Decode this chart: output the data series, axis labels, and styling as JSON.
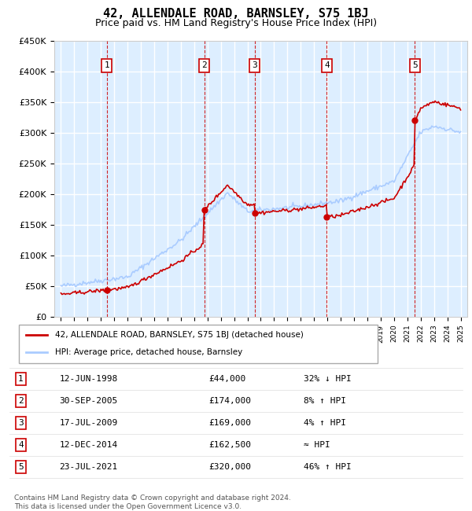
{
  "title": "42, ALLENDALE ROAD, BARNSLEY, S75 1BJ",
  "subtitle": "Price paid vs. HM Land Registry's House Price Index (HPI)",
  "ylim": [
    0,
    450000
  ],
  "yticks": [
    0,
    50000,
    100000,
    150000,
    200000,
    250000,
    300000,
    350000,
    400000,
    450000
  ],
  "ytick_labels": [
    "£0",
    "£50K",
    "£100K",
    "£150K",
    "£200K",
    "£250K",
    "£300K",
    "£350K",
    "£400K",
    "£450K"
  ],
  "sale_dates_num": [
    1998.44,
    2005.75,
    2009.54,
    2014.95,
    2021.56
  ],
  "sale_prices": [
    44000,
    174000,
    169000,
    162500,
    320000
  ],
  "sale_labels": [
    "1",
    "2",
    "3",
    "4",
    "5"
  ],
  "sale_color": "#cc0000",
  "hpi_color": "#aaccff",
  "plot_bg_color": "#ddeeff",
  "grid_color": "#ffffff",
  "legend_entries": [
    "42, ALLENDALE ROAD, BARNSLEY, S75 1BJ (detached house)",
    "HPI: Average price, detached house, Barnsley"
  ],
  "table_data": [
    [
      "1",
      "12-JUN-1998",
      "£44,000",
      "32% ↓ HPI"
    ],
    [
      "2",
      "30-SEP-2005",
      "£174,000",
      "8% ↑ HPI"
    ],
    [
      "3",
      "17-JUL-2009",
      "£169,000",
      "4% ↑ HPI"
    ],
    [
      "4",
      "12-DEC-2014",
      "£162,500",
      "≈ HPI"
    ],
    [
      "5",
      "23-JUL-2021",
      "£320,000",
      "46% ↑ HPI"
    ]
  ],
  "footnote": "Contains HM Land Registry data © Crown copyright and database right 2024.\nThis data is licensed under the Open Government Licence v3.0.",
  "xmin": 1994.5,
  "xmax": 2025.5
}
